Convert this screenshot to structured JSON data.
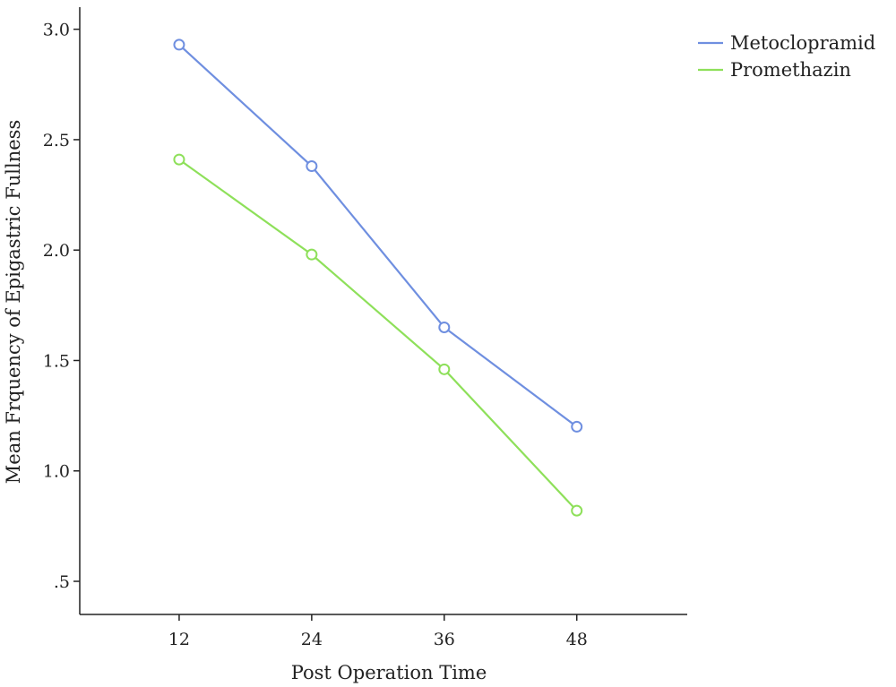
{
  "chart_data": {
    "type": "line",
    "x": [
      12,
      24,
      36,
      48
    ],
    "x_tick_labels": [
      "12",
      "24",
      "36",
      "48"
    ],
    "xlabel": "Post Operation Time",
    "ylabel": "Mean Frquency of Epigastric Fullness",
    "xlim": [
      3,
      58
    ],
    "ylim": [
      0.35,
      3.1
    ],
    "y_ticks": [
      0.5,
      1.0,
      1.5,
      2.0,
      2.5,
      3.0
    ],
    "y_tick_labels": [
      ".5",
      "1.0",
      "1.5",
      "2.0",
      "2.5",
      "3.0"
    ],
    "grid": false,
    "legend_position": "top-right",
    "series": [
      {
        "name": "Metoclopramid",
        "values": [
          2.93,
          2.38,
          1.65,
          1.2
        ],
        "color": "#6f8fe0"
      },
      {
        "name": "Promethazin",
        "values": [
          2.41,
          1.98,
          1.46,
          0.82
        ],
        "color": "#8ee05a"
      }
    ]
  }
}
